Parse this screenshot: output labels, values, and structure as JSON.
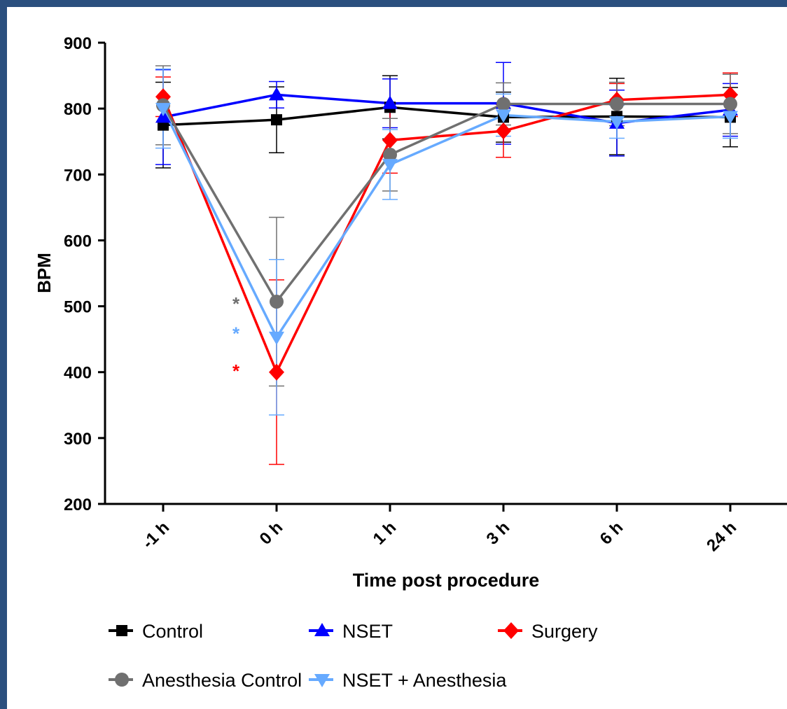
{
  "chart_data": {
    "type": "line",
    "title": "",
    "xlabel": "Time post procedure",
    "ylabel": "BPM",
    "categories": [
      "-1 h",
      "0 h",
      "1 h",
      "3 h",
      "6 h",
      "24 h"
    ],
    "ylim": [
      200,
      900
    ],
    "yticks": [
      "200",
      "300",
      "400",
      "500",
      "600",
      "700",
      "800",
      "900"
    ],
    "grid": false,
    "legend_position": "bottom",
    "series": [
      {
        "name": "Control",
        "color": "#000000",
        "marker": "square",
        "values": [
          775,
          783,
          802,
          787,
          788,
          787
        ],
        "errors": [
          65,
          50,
          48,
          38,
          58,
          45
        ]
      },
      {
        "name": "NSET",
        "color": "#0000ff",
        "marker": "triangle-up",
        "values": [
          787,
          821,
          808,
          808,
          778,
          798
        ],
        "errors": [
          72,
          20,
          37,
          62,
          50,
          40
        ]
      },
      {
        "name": "Surgery",
        "color": "#ff0000",
        "marker": "diamond",
        "values": [
          818,
          400,
          752,
          766,
          813,
          821
        ],
        "errors": [
          30,
          140,
          50,
          40,
          25,
          33
        ]
      },
      {
        "name": "Anesthesia Control",
        "color": "#707070",
        "marker": "circle",
        "values": [
          805,
          507,
          730,
          807,
          807,
          807
        ],
        "errors": [
          60,
          128,
          55,
          32,
          33,
          45
        ]
      },
      {
        "name": "NSET + Anesthesia",
        "color": "#66aaff",
        "marker": "triangle-down",
        "values": [
          800,
          453,
          715,
          790,
          780,
          788
        ],
        "errors": [
          60,
          118,
          53,
          32,
          25,
          33
        ]
      }
    ],
    "annotations": [
      {
        "text": "*",
        "x": "0 h",
        "y": 510,
        "color": "#707070"
      },
      {
        "text": "*",
        "x": "0 h",
        "y": 465,
        "color": "#66aaff"
      },
      {
        "text": "*",
        "x": "0 h",
        "y": 408,
        "color": "#ff0000"
      }
    ]
  }
}
